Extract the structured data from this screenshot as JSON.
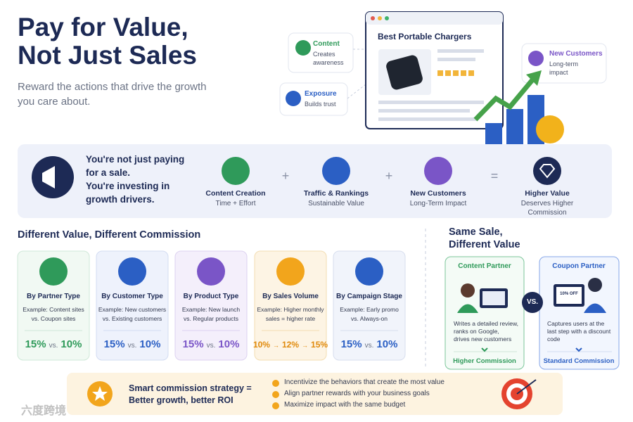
{
  "header": {
    "title_lines": [
      "Pay for Value,",
      "Not Just Sales"
    ],
    "subtitle_lines": [
      "Reward the actions that drive the growth",
      "you care about."
    ]
  },
  "hero": {
    "cards": [
      {
        "title": "Content",
        "lines": [
          "Creates",
          "awareness"
        ]
      },
      {
        "title": "Exposure",
        "lines": [
          "Builds trust"
        ]
      },
      {
        "title": "New Customers",
        "lines": [
          "Long-term",
          "impact"
        ]
      }
    ],
    "product_title": "Best Portable Chargers"
  },
  "banner": {
    "message_lines": [
      "You're not just paying",
      "for a sale.",
      "You're investing in",
      "growth drivers."
    ],
    "items": [
      {
        "title": "Content Creation",
        "lines": [
          "Time + Effort"
        ]
      },
      {
        "title": "Traffic & Rankings",
        "lines": [
          "Sustainable Value"
        ]
      },
      {
        "title": "New Customers",
        "lines": [
          "Long-Term Impact"
        ]
      },
      {
        "title": "Higher Value",
        "lines": [
          "Deserves Higher",
          "Commission"
        ]
      }
    ],
    "operators": [
      "+",
      "+",
      "="
    ]
  },
  "commission": {
    "title": "Different Value, Different Commission",
    "cards": [
      {
        "title": "By Partner Type",
        "example_lines": [
          "Example: Content sites",
          "vs. Coupon sites"
        ],
        "rates": [
          "15%",
          "vs.",
          "10%"
        ]
      },
      {
        "title": "By Customer Type",
        "example_lines": [
          "Example: New customers",
          "vs. Existing customers"
        ],
        "rates": [
          "15%",
          "vs.",
          "10%"
        ]
      },
      {
        "title": "By Product Type",
        "example_lines": [
          "Example: New launch",
          "vs. Regular products"
        ],
        "rates": [
          "15%",
          "vs.",
          "10%"
        ]
      },
      {
        "title": "By Sales Volume",
        "example_lines": [
          "Example: Higher monthly",
          "sales = higher rate"
        ],
        "rates": [
          "10%",
          "→",
          "12%",
          "→",
          "15%"
        ]
      },
      {
        "title": "By Campaign Stage",
        "example_lines": [
          "Example: Early promo",
          "vs. Always-on"
        ],
        "rates": [
          "15%",
          "vs.",
          "10%"
        ]
      }
    ]
  },
  "same_sale": {
    "title_lines": [
      "Same Sale,",
      "Different Value"
    ],
    "vs": "VS.",
    "partners": [
      {
        "label": "Content Partner",
        "lines": [
          "Writes a detailed review,",
          "ranks on Google,",
          "drives new customers"
        ],
        "result": "Higher Commission"
      },
      {
        "label": "Coupon Partner",
        "screen": "10% OFF",
        "lines": [
          "Captures users at the",
          "last step with a discount",
          "code"
        ],
        "result": "Standard Commission"
      }
    ]
  },
  "strategy": {
    "title_lines": [
      "Smart commission strategy =",
      "Better growth, better ROI"
    ],
    "bullets": [
      "Incentivize the behaviors that create the most value",
      "Align partner rewards with your business goals",
      "Maximize impact with the same budget"
    ]
  },
  "watermark": "六度跨境"
}
